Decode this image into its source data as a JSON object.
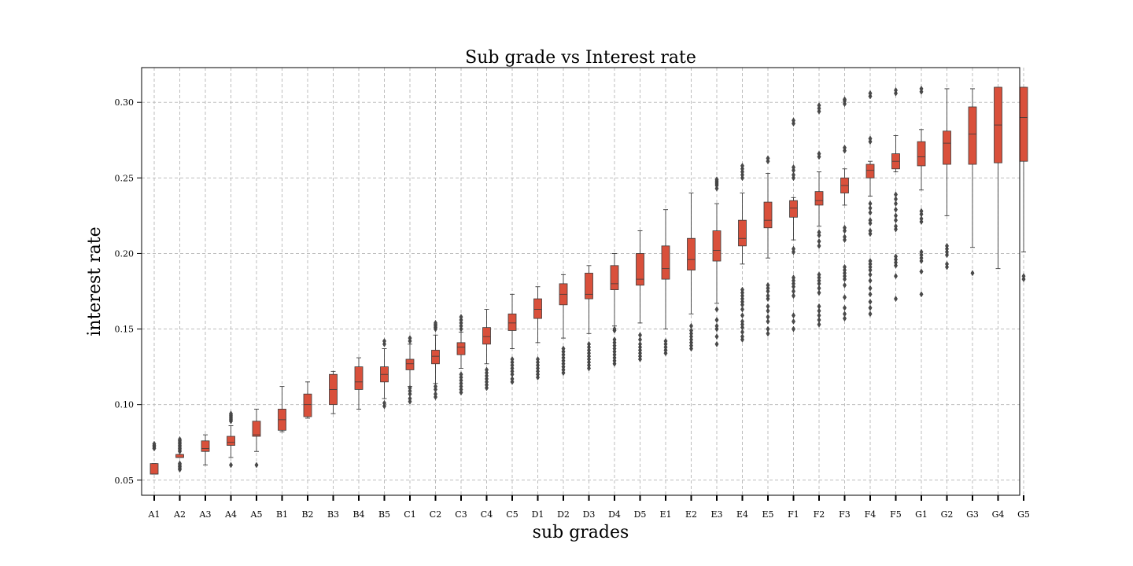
{
  "chart_data": {
    "type": "box",
    "title": "Sub grade vs Interest rate",
    "xlabel": "sub grades",
    "ylabel": "interest rate",
    "ylim": [
      0.04,
      0.323
    ],
    "yticks": [
      0.05,
      0.1,
      0.15,
      0.2,
      0.25,
      0.3
    ],
    "ytick_labels": [
      "0.05",
      "0.10",
      "0.15",
      "0.20",
      "0.25",
      "0.30"
    ],
    "grid": true,
    "box_color": "#d9503b",
    "line_color": "#3b3b3b",
    "categories": [
      "A1",
      "A2",
      "A3",
      "A4",
      "A5",
      "B1",
      "B2",
      "B3",
      "B4",
      "B5",
      "C1",
      "C2",
      "C3",
      "C4",
      "C5",
      "D1",
      "D2",
      "D3",
      "D4",
      "D5",
      "E1",
      "E2",
      "E3",
      "E4",
      "E5",
      "F1",
      "F2",
      "F3",
      "F4",
      "F5",
      "G1",
      "G2",
      "G3",
      "G4",
      "G5"
    ],
    "boxes": [
      {
        "label": "A1",
        "whislo": 0.054,
        "q1": 0.054,
        "med": 0.054,
        "q3": 0.061,
        "whishi": 0.061,
        "fliers": [
          0.071,
          0.072,
          0.073,
          0.074
        ]
      },
      {
        "label": "A2",
        "whislo": 0.065,
        "q1": 0.065,
        "med": 0.065,
        "q3": 0.067,
        "whishi": 0.067,
        "fliers": [
          0.057,
          0.058,
          0.059,
          0.06,
          0.061,
          0.069,
          0.07,
          0.071,
          0.072,
          0.073,
          0.074,
          0.075,
          0.076,
          0.077
        ]
      },
      {
        "label": "A3",
        "whislo": 0.06,
        "q1": 0.069,
        "med": 0.071,
        "q3": 0.076,
        "whishi": 0.08,
        "fliers": []
      },
      {
        "label": "A4",
        "whislo": 0.065,
        "q1": 0.073,
        "med": 0.075,
        "q3": 0.079,
        "whishi": 0.086,
        "fliers": [
          0.06,
          0.089,
          0.09,
          0.091,
          0.092,
          0.093,
          0.094
        ]
      },
      {
        "label": "A5",
        "whislo": 0.069,
        "q1": 0.079,
        "med": 0.08,
        "q3": 0.089,
        "whishi": 0.097,
        "fliers": [
          0.06
        ]
      },
      {
        "label": "B1",
        "whislo": 0.082,
        "q1": 0.083,
        "med": 0.09,
        "q3": 0.097,
        "whishi": 0.112,
        "fliers": []
      },
      {
        "label": "B2",
        "whislo": 0.091,
        "q1": 0.092,
        "med": 0.1,
        "q3": 0.107,
        "whishi": 0.115,
        "fliers": []
      },
      {
        "label": "B3",
        "whislo": 0.094,
        "q1": 0.1,
        "med": 0.11,
        "q3": 0.12,
        "whishi": 0.122,
        "fliers": []
      },
      {
        "label": "B4",
        "whislo": 0.097,
        "q1": 0.11,
        "med": 0.115,
        "q3": 0.125,
        "whishi": 0.131,
        "fliers": []
      },
      {
        "label": "B5",
        "whislo": 0.104,
        "q1": 0.115,
        "med": 0.12,
        "q3": 0.125,
        "whishi": 0.137,
        "fliers": [
          0.099,
          0.101,
          0.14,
          0.142
        ]
      },
      {
        "label": "C1",
        "whislo": 0.112,
        "q1": 0.123,
        "med": 0.127,
        "q3": 0.13,
        "whishi": 0.14,
        "fliers": [
          0.102,
          0.104,
          0.107,
          0.109,
          0.111,
          0.142,
          0.144
        ]
      },
      {
        "label": "C2",
        "whislo": 0.114,
        "q1": 0.127,
        "med": 0.132,
        "q3": 0.136,
        "whishi": 0.146,
        "fliers": [
          0.105,
          0.107,
          0.11,
          0.112,
          0.15,
          0.151,
          0.152,
          0.153,
          0.154
        ]
      },
      {
        "label": "C3",
        "whislo": 0.124,
        "q1": 0.133,
        "med": 0.138,
        "q3": 0.141,
        "whishi": 0.148,
        "fliers": [
          0.108,
          0.11,
          0.112,
          0.114,
          0.116,
          0.118,
          0.12,
          0.15,
          0.152,
          0.154,
          0.156,
          0.158
        ]
      },
      {
        "label": "C4",
        "whislo": 0.127,
        "q1": 0.14,
        "med": 0.145,
        "q3": 0.151,
        "whishi": 0.163,
        "fliers": [
          0.111,
          0.113,
          0.115,
          0.117,
          0.119,
          0.121,
          0.123
        ]
      },
      {
        "label": "C5",
        "whislo": 0.137,
        "q1": 0.149,
        "med": 0.154,
        "q3": 0.16,
        "whishi": 0.173,
        "fliers": [
          0.115,
          0.117,
          0.12,
          0.122,
          0.124,
          0.126,
          0.128,
          0.13
        ]
      },
      {
        "label": "D1",
        "whislo": 0.141,
        "q1": 0.157,
        "med": 0.163,
        "q3": 0.17,
        "whishi": 0.178,
        "fliers": [
          0.118,
          0.12,
          0.122,
          0.124,
          0.126,
          0.128,
          0.13
        ]
      },
      {
        "label": "D2",
        "whislo": 0.144,
        "q1": 0.166,
        "med": 0.173,
        "q3": 0.18,
        "whishi": 0.186,
        "fliers": [
          0.121,
          0.123,
          0.125,
          0.127,
          0.129,
          0.131,
          0.133,
          0.135,
          0.137
        ]
      },
      {
        "label": "D3",
        "whislo": 0.147,
        "q1": 0.17,
        "med": 0.173,
        "q3": 0.187,
        "whishi": 0.192,
        "fliers": [
          0.124,
          0.126,
          0.128,
          0.13,
          0.132,
          0.134,
          0.136,
          0.138,
          0.14
        ]
      },
      {
        "label": "D4",
        "whislo": 0.152,
        "q1": 0.176,
        "med": 0.18,
        "q3": 0.192,
        "whishi": 0.2,
        "fliers": [
          0.127,
          0.129,
          0.131,
          0.133,
          0.135,
          0.137,
          0.139,
          0.141,
          0.143,
          0.149,
          0.15
        ]
      },
      {
        "label": "D5",
        "whislo": 0.154,
        "q1": 0.179,
        "med": 0.183,
        "q3": 0.2,
        "whishi": 0.215,
        "fliers": [
          0.13,
          0.132,
          0.134,
          0.136,
          0.138,
          0.14,
          0.143,
          0.146
        ]
      },
      {
        "label": "E1",
        "whislo": 0.15,
        "q1": 0.183,
        "med": 0.19,
        "q3": 0.205,
        "whishi": 0.229,
        "fliers": [
          0.134,
          0.136,
          0.138,
          0.14,
          0.142
        ]
      },
      {
        "label": "E2",
        "whislo": 0.16,
        "q1": 0.189,
        "med": 0.196,
        "q3": 0.21,
        "whishi": 0.24,
        "fliers": [
          0.137,
          0.139,
          0.141,
          0.143,
          0.145,
          0.147,
          0.149,
          0.152
        ]
      },
      {
        "label": "E3",
        "whislo": 0.167,
        "q1": 0.195,
        "med": 0.202,
        "q3": 0.215,
        "whishi": 0.233,
        "fliers": [
          0.14,
          0.145,
          0.15,
          0.152,
          0.156,
          0.163,
          0.243,
          0.245,
          0.246,
          0.247,
          0.248,
          0.249
        ]
      },
      {
        "label": "E4",
        "whislo": 0.193,
        "q1": 0.205,
        "med": 0.21,
        "q3": 0.222,
        "whishi": 0.24,
        "fliers": [
          0.143,
          0.145,
          0.148,
          0.151,
          0.153,
          0.155,
          0.159,
          0.163,
          0.166,
          0.168,
          0.17,
          0.172,
          0.174,
          0.176,
          0.25,
          0.252,
          0.254,
          0.256,
          0.258
        ]
      },
      {
        "label": "E5",
        "whislo": 0.197,
        "q1": 0.217,
        "med": 0.222,
        "q3": 0.234,
        "whishi": 0.253,
        "fliers": [
          0.147,
          0.15,
          0.155,
          0.158,
          0.162,
          0.165,
          0.17,
          0.172,
          0.175,
          0.177,
          0.179,
          0.261,
          0.263
        ]
      },
      {
        "label": "F1",
        "whislo": 0.209,
        "q1": 0.224,
        "med": 0.23,
        "q3": 0.235,
        "whishi": 0.237,
        "fliers": [
          0.15,
          0.155,
          0.159,
          0.172,
          0.175,
          0.178,
          0.18,
          0.182,
          0.184,
          0.201,
          0.203,
          0.25,
          0.252,
          0.255,
          0.257,
          0.286,
          0.288
        ]
      },
      {
        "label": "F2",
        "whislo": 0.218,
        "q1": 0.232,
        "med": 0.235,
        "q3": 0.241,
        "whishi": 0.254,
        "fliers": [
          0.153,
          0.156,
          0.159,
          0.162,
          0.165,
          0.174,
          0.177,
          0.18,
          0.182,
          0.184,
          0.186,
          0.205,
          0.208,
          0.212,
          0.214,
          0.264,
          0.266,
          0.294,
          0.296,
          0.298
        ]
      },
      {
        "label": "F3",
        "whislo": 0.232,
        "q1": 0.24,
        "med": 0.245,
        "q3": 0.25,
        "whishi": 0.256,
        "fliers": [
          0.157,
          0.16,
          0.164,
          0.171,
          0.179,
          0.183,
          0.185,
          0.187,
          0.189,
          0.191,
          0.209,
          0.211,
          0.215,
          0.217,
          0.268,
          0.27,
          0.299,
          0.301,
          0.302
        ]
      },
      {
        "label": "F4",
        "whislo": 0.238,
        "q1": 0.25,
        "med": 0.255,
        "q3": 0.259,
        "whishi": 0.261,
        "fliers": [
          0.16,
          0.164,
          0.168,
          0.173,
          0.177,
          0.182,
          0.186,
          0.189,
          0.191,
          0.193,
          0.195,
          0.213,
          0.215,
          0.22,
          0.222,
          0.227,
          0.23,
          0.233,
          0.274,
          0.276,
          0.304,
          0.306
        ]
      },
      {
        "label": "F5",
        "whislo": 0.254,
        "q1": 0.256,
        "med": 0.261,
        "q3": 0.266,
        "whishi": 0.278,
        "fliers": [
          0.17,
          0.185,
          0.192,
          0.194,
          0.196,
          0.198,
          0.216,
          0.218,
          0.222,
          0.225,
          0.229,
          0.233,
          0.236,
          0.239,
          0.306,
          0.308
        ]
      },
      {
        "label": "G1",
        "whislo": 0.242,
        "q1": 0.258,
        "med": 0.264,
        "q3": 0.274,
        "whishi": 0.282,
        "fliers": [
          0.173,
          0.188,
          0.195,
          0.197,
          0.199,
          0.201,
          0.221,
          0.223,
          0.226,
          0.228,
          0.307,
          0.309
        ]
      },
      {
        "label": "G2",
        "whislo": 0.225,
        "q1": 0.259,
        "med": 0.273,
        "q3": 0.281,
        "whishi": 0.309,
        "fliers": [
          0.191,
          0.193,
          0.199,
          0.201,
          0.203,
          0.205
        ]
      },
      {
        "label": "G3",
        "whislo": 0.204,
        "q1": 0.259,
        "med": 0.279,
        "q3": 0.297,
        "whishi": 0.309,
        "fliers": [
          0.187
        ]
      },
      {
        "label": "G4",
        "whislo": 0.19,
        "q1": 0.26,
        "med": 0.285,
        "q3": 0.31,
        "whishi": 0.31,
        "fliers": []
      },
      {
        "label": "G5",
        "whislo": 0.201,
        "q1": 0.261,
        "med": 0.29,
        "q3": 0.31,
        "whishi": 0.31,
        "fliers": [
          0.183,
          0.185
        ]
      }
    ]
  }
}
